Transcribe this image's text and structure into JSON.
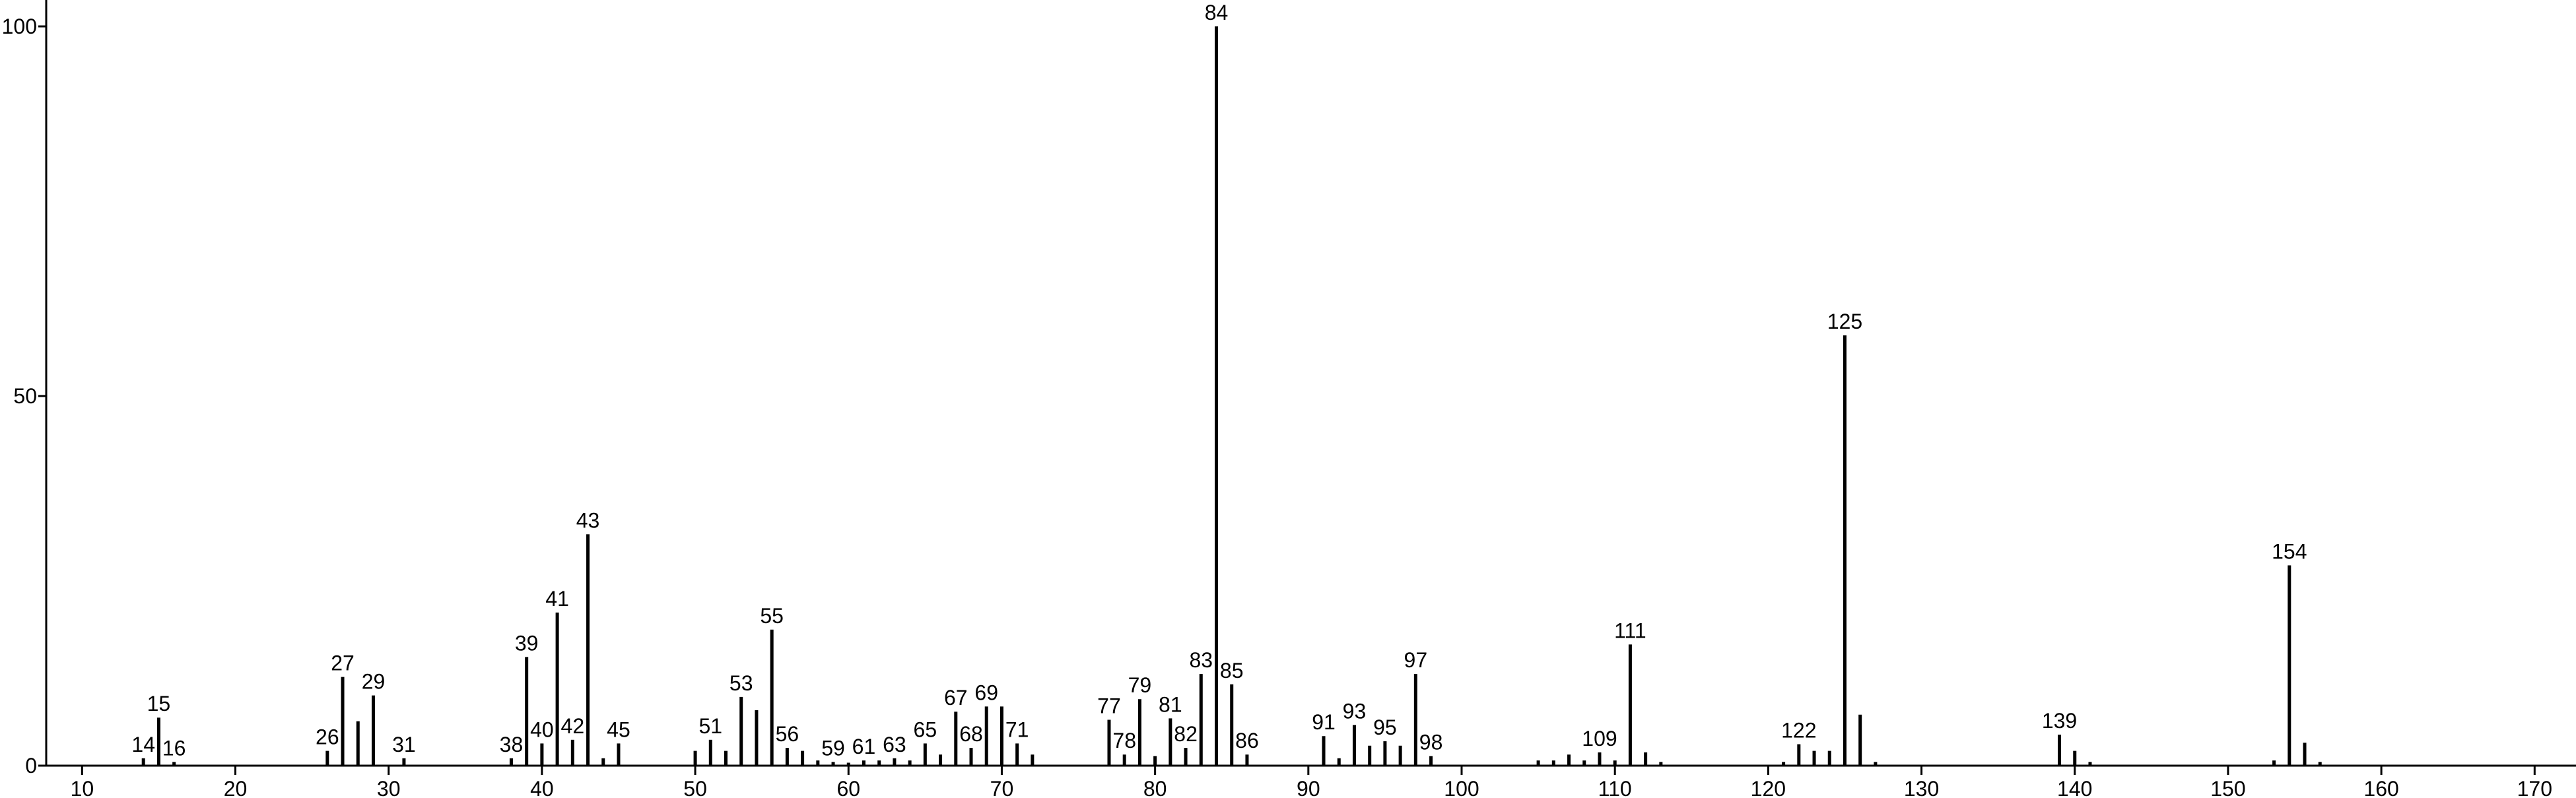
{
  "chart_data": {
    "type": "stem",
    "x": [
      14,
      15,
      16,
      26,
      27,
      28,
      29,
      31,
      38,
      39,
      40,
      41,
      42,
      43,
      44,
      45,
      50,
      51,
      52,
      53,
      54,
      55,
      56,
      57,
      58,
      59,
      60,
      61,
      62,
      63,
      64,
      65,
      66,
      67,
      68,
      69,
      70,
      71,
      72,
      77,
      78,
      79,
      80,
      81,
      82,
      83,
      84,
      85,
      86,
      91,
      92,
      93,
      94,
      95,
      96,
      97,
      98,
      105,
      106,
      107,
      108,
      109,
      110,
      111,
      112,
      113,
      121,
      122,
      123,
      124,
      125,
      126,
      127,
      139,
      140,
      141,
      153,
      154,
      155,
      156
    ],
    "values": [
      1,
      6.5,
      0.5,
      2,
      12,
      6,
      9.5,
      1,
      1,
      14.7,
      3,
      20.7,
      3.5,
      31.3,
      1,
      3,
      2,
      3.5,
      2,
      9.3,
      7.5,
      18.4,
      2.4,
      2,
      0.7,
      0.5,
      0.4,
      0.7,
      0.7,
      1,
      0.7,
      3,
      1.5,
      7.3,
      2.4,
      8,
      8,
      3,
      1.5,
      6.2,
      1.5,
      9,
      1.3,
      6.4,
      2.4,
      12.4,
      100,
      11,
      1.5,
      4,
      1,
      5.5,
      2.7,
      3.3,
      2.7,
      12.4,
      1.3,
      0.7,
      0.7,
      1.5,
      0.7,
      1.8,
      0.7,
      16.4,
      1.8,
      0.5,
      0.5,
      2.9,
      2,
      2,
      58.2,
      6.9,
      0.5,
      4.2,
      2,
      0.5,
      0.7,
      27.1,
      3.1,
      0.5
    ],
    "peak_labels": [
      "14",
      "15",
      "16",
      "26",
      "27",
      null,
      "29",
      "31",
      "38",
      "39",
      "40",
      "41",
      "42",
      "43",
      null,
      "45",
      null,
      "51",
      null,
      "53",
      null,
      "55",
      "56",
      null,
      null,
      "59",
      null,
      "61",
      null,
      "63",
      null,
      "65",
      null,
      "67",
      "68",
      "69",
      null,
      "71",
      null,
      "77",
      "78",
      "79",
      null,
      "81",
      "82",
      "83",
      "84",
      "85",
      "86",
      "91",
      null,
      "93",
      null,
      "95",
      null,
      "97",
      "98",
      null,
      null,
      null,
      null,
      "109",
      null,
      "111",
      null,
      null,
      null,
      "122",
      null,
      null,
      "125",
      null,
      null,
      "139",
      null,
      null,
      null,
      "154",
      null,
      null
    ],
    "color": "#000000",
    "xlim": [
      7.66,
      172.7
    ],
    "xticks": [
      10,
      20,
      30,
      40,
      50,
      60,
      70,
      80,
      90,
      100,
      110,
      120,
      130,
      140,
      150,
      160,
      170
    ],
    "ylim": [
      0,
      103.57
    ],
    "yticks": [
      0,
      50,
      100
    ]
  }
}
